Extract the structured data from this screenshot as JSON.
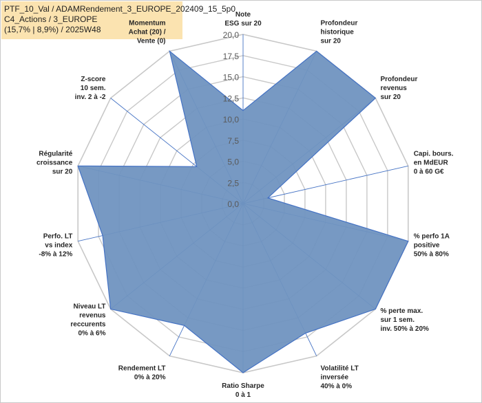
{
  "title_box": {
    "line1": "PTF_10_Val / ADAMRendement_3_EUROPE_202409_15_5p0",
    "line2": "C4_Actions / 3_EUROPE",
    "line3": "(15,7% | 8,9%) / 2025W48"
  },
  "colors": {
    "fill": "#7094c0",
    "stroke": "#4472c4",
    "grid": "#c8c8c8",
    "title_bg": "#fbe3b0"
  },
  "chart_data": {
    "type": "radar",
    "rmax": 20,
    "grid": true,
    "ticks": [
      "0,0",
      "2,5",
      "5,0",
      "7,5",
      "10,0",
      "12,5",
      "15,0",
      "17,5",
      "20,0"
    ],
    "axes": [
      {
        "label": [
          "Note",
          "ESG sur 20"
        ],
        "value": 11
      },
      {
        "label": [
          "Profondeur",
          "historique",
          "sur 20"
        ],
        "value": 20
      },
      {
        "label": [
          "Profondeur",
          "revenus",
          "sur 20"
        ],
        "value": 20
      },
      {
        "label": [
          "Capi. bours.",
          "en MdEUR",
          "0 à 60 G€"
        ],
        "value": 3
      },
      {
        "label": [
          "% perfo 1A",
          "positive",
          "50% à 80%"
        ],
        "value": 20
      },
      {
        "label": [
          "% perte max.",
          "sur 1 sem.",
          "inv. 50% à 20%"
        ],
        "value": 20
      },
      {
        "label": [
          "Volatilité LT",
          "inversée",
          "40% à 0%"
        ],
        "value": 17
      },
      {
        "label": [
          "Ratio Sharpe",
          "0 à 1"
        ],
        "value": 20
      },
      {
        "label": [
          "Rendement LT",
          "0% à 20%"
        ],
        "value": 16
      },
      {
        "label": [
          "Niveau LT",
          "revenus",
          "reccurents",
          "0% à 6%"
        ],
        "value": 20
      },
      {
        "label": [
          "Perfo. LT",
          "vs index",
          "-8% à 12%"
        ],
        "value": 17
      },
      {
        "label": [
          "Régularité",
          "croissance",
          "sur 20"
        ],
        "value": 20
      },
      {
        "label": [
          "Z-score",
          "10 sem.",
          "inv. 2 à -2"
        ],
        "value": 7
      },
      {
        "label": [
          "Momentum",
          "Achat (20) /",
          "Vente (0)"
        ],
        "value": 20
      }
    ]
  }
}
